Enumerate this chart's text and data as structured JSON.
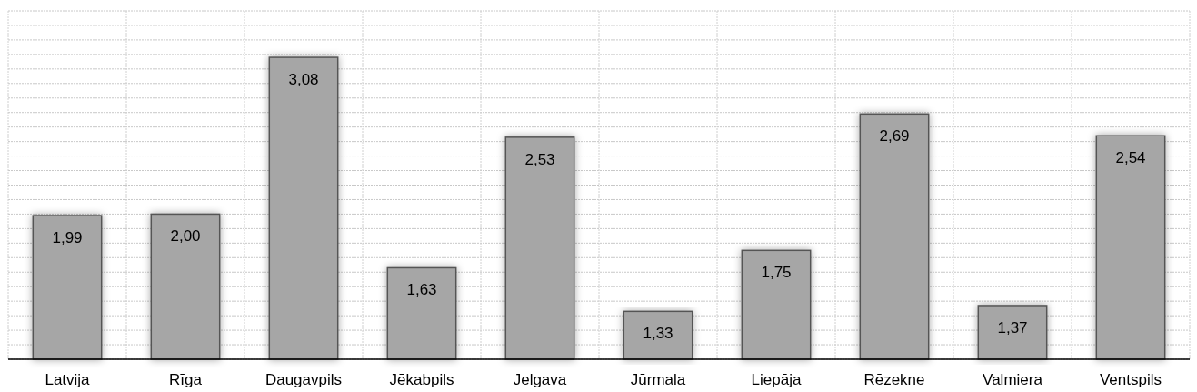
{
  "chart_data": {
    "type": "bar",
    "categories": [
      "Latvija",
      "Rīga",
      "Daugavpils",
      "Jēkabpils",
      "Jelgava",
      "Jūrmala",
      "Liepāja",
      "Rēzekne",
      "Valmiera",
      "Ventspils"
    ],
    "values": [
      1.99,
      2.0,
      3.08,
      1.63,
      2.53,
      1.33,
      1.75,
      2.69,
      1.37,
      2.54
    ],
    "color": "#a6a6a6",
    "ylim": [
      1,
      3.4
    ],
    "yticks": [
      {
        "value": 1.0,
        "label": null
      },
      {
        "value": 1.1,
        "label": null
      },
      {
        "value": 1.2,
        "label": null
      },
      {
        "value": 1.3,
        "label": null
      },
      {
        "value": 1.4,
        "label": null
      },
      {
        "value": 1.5,
        "label": null
      },
      {
        "value": 1.6,
        "label": null
      },
      {
        "value": 1.7,
        "label": null
      },
      {
        "value": 1.8,
        "label": null
      },
      {
        "value": 1.9,
        "label": null
      },
      {
        "value": 2.0,
        "label": null
      },
      {
        "value": 2.1,
        "label": null
      },
      {
        "value": 2.2,
        "label": null
      },
      {
        "value": 2.3,
        "label": null
      },
      {
        "value": 2.4,
        "label": null
      },
      {
        "value": 2.5,
        "label": null
      },
      {
        "value": 2.6,
        "label": null
      },
      {
        "value": 2.7,
        "label": null
      },
      {
        "value": 2.8,
        "label": null
      },
      {
        "value": 2.9,
        "label": null
      },
      {
        "value": 3.0,
        "label": null
      },
      {
        "value": 3.1,
        "label": null
      },
      {
        "value": 3.2,
        "label": null
      },
      {
        "value": 3.3,
        "label": null
      },
      {
        "value": 3.4,
        "label": null
      }
    ],
    "value_labels": [
      "1,99",
      "2,00",
      "3,08",
      "1,63",
      "2,53",
      "1,33",
      "1,75",
      "2,69",
      "1,37",
      "2,54"
    ],
    "grid": true,
    "tick_labels": "x"
  }
}
